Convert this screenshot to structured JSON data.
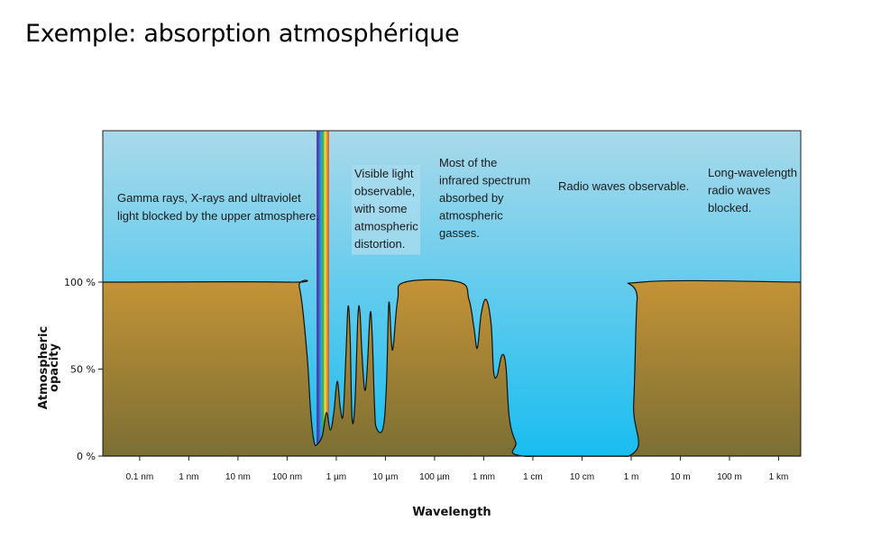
{
  "slide": {
    "title": "Exemple: absorption atmosphérique"
  },
  "chart_data": {
    "type": "area",
    "xlabel": "Wavelength",
    "ylabel_lines": [
      "Atmospheric",
      "opacity"
    ],
    "x_ticks": [
      "0.1 nm",
      "1 nm",
      "10 nm",
      "100 nm",
      "1 µm",
      "10 µm",
      "100 µm",
      "1 mm",
      "1 cm",
      "10 cm",
      "1 m",
      "10 m",
      "100 m",
      "1 km"
    ],
    "y_ticks": [
      "0 %",
      "50 %",
      "100 %"
    ],
    "ylim": [
      0,
      100
    ],
    "wavelength_exponent_range": [
      -10.75,
      3.45
    ],
    "series": [
      {
        "values_log10m_pct": [
          [
            -10.75,
            100
          ],
          [
            -6.95,
            100
          ],
          [
            -6.75,
            97
          ],
          [
            -6.6,
            60
          ],
          [
            -6.52,
            25
          ],
          [
            -6.45,
            8
          ],
          [
            -6.38,
            7
          ],
          [
            -6.28,
            12
          ],
          [
            -6.2,
            25
          ],
          [
            -6.12,
            15
          ],
          [
            -6.05,
            25
          ],
          [
            -5.98,
            43
          ],
          [
            -5.92,
            28
          ],
          [
            -5.86,
            24
          ],
          [
            -5.8,
            60
          ],
          [
            -5.76,
            86
          ],
          [
            -5.72,
            70
          ],
          [
            -5.68,
            22
          ],
          [
            -5.62,
            30
          ],
          [
            -5.56,
            80
          ],
          [
            -5.52,
            83
          ],
          [
            -5.48,
            60
          ],
          [
            -5.42,
            38
          ],
          [
            -5.37,
            50
          ],
          [
            -5.31,
            82
          ],
          [
            -5.27,
            70
          ],
          [
            -5.22,
            28
          ],
          [
            -5.18,
            16
          ],
          [
            -5.05,
            16
          ],
          [
            -4.98,
            40
          ],
          [
            -4.93,
            88
          ],
          [
            -4.88,
            66
          ],
          [
            -4.84,
            63
          ],
          [
            -4.75,
            90
          ],
          [
            -4.6,
            100
          ],
          [
            -3.5,
            100
          ],
          [
            -3.3,
            90
          ],
          [
            -3.2,
            74
          ],
          [
            -3.13,
            62
          ],
          [
            -3.05,
            82
          ],
          [
            -2.95,
            90
          ],
          [
            -2.85,
            76
          ],
          [
            -2.8,
            49
          ],
          [
            -2.73,
            46
          ],
          [
            -2.63,
            58
          ],
          [
            -2.55,
            52
          ],
          [
            -2.48,
            22
          ],
          [
            -2.35,
            8
          ],
          [
            -2.2,
            0
          ],
          [
            -0.05,
            0
          ],
          [
            0.05,
            30
          ],
          [
            0.12,
            90
          ],
          [
            0.22,
            100
          ],
          [
            3.45,
            100
          ]
        ]
      }
    ],
    "visible_band_log10m": [
      -6.4,
      -6.15
    ],
    "colors": {
      "sky_top": "#a9d9ea",
      "sky_bottom": "#19bdf0",
      "ground_top": "#c49336",
      "ground_bottom": "#796e34"
    },
    "annotations": [
      {
        "lines": [
          "Gamma rays, X-rays and ultraviolet",
          "light blocked by the upper atmosphere."
        ]
      },
      {
        "lines": [
          "Visible light",
          "observable,",
          "with some",
          "atmospheric",
          "distortion."
        ]
      },
      {
        "lines": [
          "Most of the",
          "infrared spectrum",
          "absorbed by",
          "atmospheric",
          "gasses."
        ]
      },
      {
        "lines": [
          "Radio waves observable."
        ]
      },
      {
        "lines": [
          "Long-wavelength",
          "radio waves",
          "blocked."
        ]
      }
    ]
  }
}
